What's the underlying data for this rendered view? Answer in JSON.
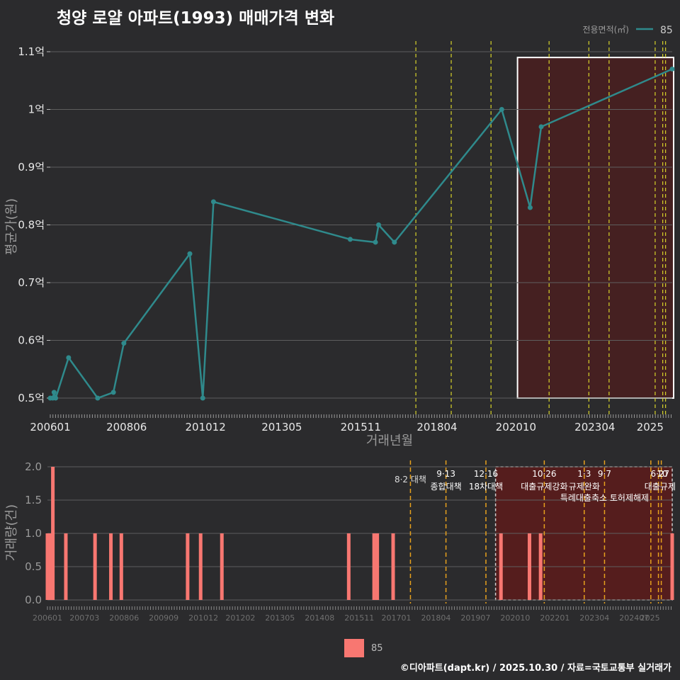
{
  "title": "청양 로얄 아파트(1993) 매매가격 변화",
  "caption": "©디아파트(dapt.kr) / 2025.10.30 / 자료=국토교통부 실거래가",
  "colors": {
    "background": "#2b2b2d",
    "line": "#2f8a8c",
    "bar": "#f87771",
    "highlight": "#4a1e20",
    "grid": "#5e5e5e",
    "policy_line_top": "#d7d32a",
    "policy_line_bottom": "#e7a11d"
  },
  "chart_data": [
    {
      "type": "line",
      "ylabel": "평균가(원)",
      "xlabel": "거래년월",
      "legend": {
        "title": "전용면적(㎡)",
        "entries": [
          "85"
        ],
        "position": "top-right"
      },
      "yticks": [
        {
          "value": 0.5,
          "label": "0.5억"
        },
        {
          "value": 0.6,
          "label": "0.6억"
        },
        {
          "value": 0.7,
          "label": "0.7억"
        },
        {
          "value": 0.8,
          "label": "0.8억"
        },
        {
          "value": 0.9,
          "label": "0.9억"
        },
        {
          "value": 1.0,
          "label": "1억"
        },
        {
          "value": 1.1,
          "label": "1.1억"
        }
      ],
      "xticks": [
        {
          "t": 2006.0,
          "label": "200601"
        },
        {
          "t": 2008.417,
          "label": "200806"
        },
        {
          "t": 2010.917,
          "label": "201012"
        },
        {
          "t": 2013.333,
          "label": "201305"
        },
        {
          "t": 2015.833,
          "label": "201511"
        },
        {
          "t": 2018.25,
          "label": "201804"
        },
        {
          "t": 2020.75,
          "label": "202010"
        },
        {
          "t": 2023.25,
          "label": "202304"
        },
        {
          "t": 2025.0,
          "label": "2025"
        }
      ],
      "xlim": [
        2006.0,
        2025.7
      ],
      "ylim": [
        0.5,
        1.1
      ],
      "series": [
        {
          "name": "85",
          "points": [
            {
              "t": 2006.0,
              "v": 0.5
            },
            {
              "t": 2006.08,
              "v": 0.5
            },
            {
              "t": 2006.12,
              "v": 0.51
            },
            {
              "t": 2006.17,
              "v": 0.5
            },
            {
              "t": 2006.58,
              "v": 0.57
            },
            {
              "t": 2007.5,
              "v": 0.5
            },
            {
              "t": 2008.0,
              "v": 0.51
            },
            {
              "t": 2008.33,
              "v": 0.595
            },
            {
              "t": 2010.42,
              "v": 0.75
            },
            {
              "t": 2010.83,
              "v": 0.5
            },
            {
              "t": 2011.17,
              "v": 0.84
            },
            {
              "t": 2015.5,
              "v": 0.775
            },
            {
              "t": 2016.3,
              "v": 0.77
            },
            {
              "t": 2016.4,
              "v": 0.8
            },
            {
              "t": 2016.9,
              "v": 0.77
            },
            {
              "t": 2020.3,
              "v": 1.0
            },
            {
              "t": 2021.2,
              "v": 0.83
            },
            {
              "t": 2021.55,
              "v": 0.97
            },
            {
              "t": 2025.7,
              "v": 1.07
            }
          ]
        }
      ],
      "policy_lines": [
        2017.58,
        2018.7,
        2019.96,
        2021.8,
        2023.06,
        2023.7,
        2025.16,
        2025.4,
        2025.49
      ],
      "highlight": {
        "t_start": 2020.8,
        "t_end": 2025.7,
        "v_min": 0.5,
        "v_max": 1.09
      }
    },
    {
      "type": "bar",
      "ylabel": "거래량(건)",
      "legend": {
        "entries": [
          "85"
        ],
        "position": "bottom"
      },
      "yticks": [
        {
          "value": 0.0,
          "label": "0.0"
        },
        {
          "value": 0.5,
          "label": "0.5"
        },
        {
          "value": 1.0,
          "label": "1.0"
        },
        {
          "value": 1.5,
          "label": "1.5"
        },
        {
          "value": 2.0,
          "label": "2.0"
        }
      ],
      "xticks": [
        {
          "t": 2006.0,
          "label": "200601"
        },
        {
          "t": 2007.167,
          "label": "200703"
        },
        {
          "t": 2008.417,
          "label": "200806"
        },
        {
          "t": 2009.667,
          "label": "200909"
        },
        {
          "t": 2010.917,
          "label": "201012"
        },
        {
          "t": 2012.083,
          "label": "201202"
        },
        {
          "t": 2013.333,
          "label": "201305"
        },
        {
          "t": 2014.583,
          "label": "201408"
        },
        {
          "t": 2015.833,
          "label": "201511"
        },
        {
          "t": 2017.0,
          "label": "201701"
        },
        {
          "t": 2018.25,
          "label": "201804"
        },
        {
          "t": 2019.5,
          "label": "201907"
        },
        {
          "t": 2020.75,
          "label": "202010"
        },
        {
          "t": 2022.0,
          "label": "202201"
        },
        {
          "t": 2023.25,
          "label": "202304"
        },
        {
          "t": 2024.5,
          "label": "202407"
        },
        {
          "t": 2025.0,
          "label": "2025"
        }
      ],
      "xlim": [
        2006.0,
        2025.7
      ],
      "ylim": [
        0,
        2
      ],
      "bars": [
        {
          "t": 2006.0,
          "v": 1
        },
        {
          "t": 2006.08,
          "v": 1
        },
        {
          "t": 2006.17,
          "v": 2
        },
        {
          "t": 2006.58,
          "v": 1
        },
        {
          "t": 2007.5,
          "v": 1
        },
        {
          "t": 2008.0,
          "v": 1
        },
        {
          "t": 2008.33,
          "v": 1
        },
        {
          "t": 2010.42,
          "v": 1
        },
        {
          "t": 2010.83,
          "v": 1
        },
        {
          "t": 2011.5,
          "v": 1
        },
        {
          "t": 2015.5,
          "v": 1
        },
        {
          "t": 2016.3,
          "v": 1
        },
        {
          "t": 2016.4,
          "v": 1
        },
        {
          "t": 2016.9,
          "v": 1
        },
        {
          "t": 2020.3,
          "v": 1
        },
        {
          "t": 2021.2,
          "v": 1
        },
        {
          "t": 2021.55,
          "v": 1
        },
        {
          "t": 2025.7,
          "v": 1
        }
      ],
      "policy_lines": [
        2017.58,
        2018.7,
        2019.96,
        2021.8,
        2023.06,
        2023.7,
        2025.16,
        2025.4,
        2025.49
      ],
      "policy_labels": [
        {
          "t": 2017.58,
          "date": "",
          "name": "8·2 대책"
        },
        {
          "t": 2018.7,
          "date": "9·13",
          "name": "종합대책"
        },
        {
          "t": 2019.96,
          "date": "12·16",
          "name": "18차대책"
        },
        {
          "t": 2021.8,
          "date": "10·26",
          "name": "대출규제강화"
        },
        {
          "t": 2023.06,
          "date": "1·3",
          "name": "규제완화"
        },
        {
          "t": 2023.7,
          "date": "9·7",
          "name": "특례대출축소 토허제해제"
        },
        {
          "t": 2025.45,
          "date": "6·27",
          "name": "대출규제"
        },
        {
          "t": 2025.52,
          "date": "10",
          "name": ""
        }
      ],
      "highlight": {
        "t_start": 2020.8,
        "t_end": 2025.7,
        "v_min": 0,
        "v_max": 2
      }
    }
  ]
}
